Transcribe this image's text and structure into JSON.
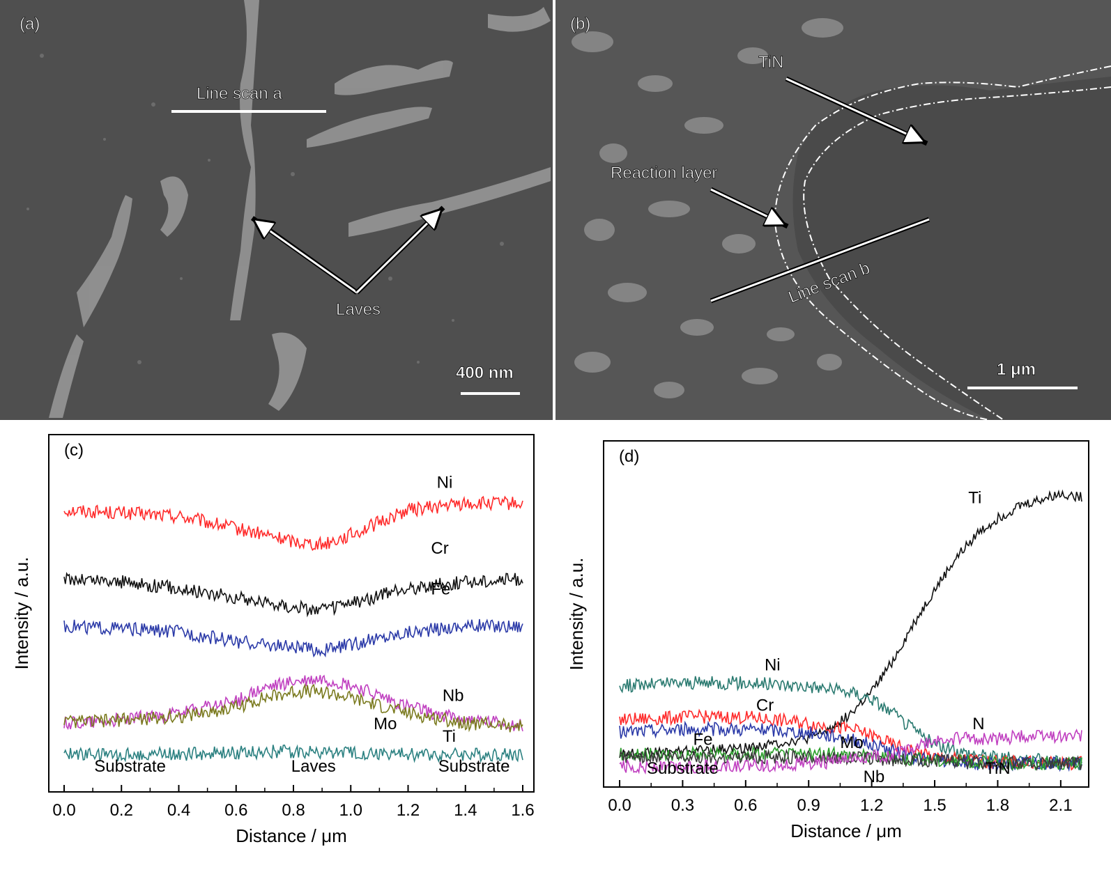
{
  "panels": {
    "a": {
      "tag": "(a)",
      "line_scan_label": "Line scan a",
      "feature_label": "Laves",
      "scale_bar_label": "400 nm"
    },
    "b": {
      "tag": "(b)",
      "tin_label": "TiN",
      "reaction_layer_label": "Reaction layer",
      "line_scan_label": "Line scan b",
      "scale_bar_label": "1 μm"
    }
  },
  "chart_data": [
    {
      "id": "c",
      "tag": "(c)",
      "type": "line",
      "xlabel": "Distance / μm",
      "ylabel": "Intensity / a.u.",
      "xlim": [
        0.0,
        1.6
      ],
      "ylim": [
        0,
        100
      ],
      "x_ticks": [
        "0.0",
        "0.2",
        "0.4",
        "0.6",
        "0.8",
        "1.0",
        "1.2",
        "1.4",
        "1.6"
      ],
      "y_ticks_visible": false,
      "grid": false,
      "region_labels": [
        {
          "text": "Substrate",
          "x": 0.23
        },
        {
          "text": "Laves",
          "x": 0.87
        },
        {
          "text": "Substrate",
          "x": 1.43
        }
      ],
      "series": [
        {
          "name": "Ni",
          "color": "#ff2a2a",
          "label_at": [
            1.3,
            91
          ],
          "x": [
            0.0,
            0.2,
            0.4,
            0.6,
            0.8,
            0.9,
            1.0,
            1.2,
            1.4,
            1.6
          ],
          "y": [
            84,
            83,
            82,
            78,
            74,
            73,
            76,
            84,
            86,
            86
          ]
        },
        {
          "name": "Cr",
          "color": "#111111",
          "label_at": [
            1.28,
            70
          ],
          "x": [
            0.0,
            0.2,
            0.4,
            0.6,
            0.8,
            0.9,
            1.0,
            1.2,
            1.4,
            1.6
          ],
          "y": [
            62,
            61,
            59,
            56,
            53,
            52,
            54,
            59,
            61,
            62
          ]
        },
        {
          "name": "Fe",
          "color": "#2b3aa8",
          "label_at": [
            1.28,
            57
          ],
          "x": [
            0.0,
            0.2,
            0.4,
            0.6,
            0.8,
            0.9,
            1.0,
            1.2,
            1.4,
            1.6
          ],
          "y": [
            47,
            46,
            45,
            42,
            40,
            39,
            41,
            45,
            47,
            47
          ]
        },
        {
          "name": "Nb",
          "color": "#c040c0",
          "label_at": [
            1.32,
            23
          ],
          "x": [
            0.0,
            0.2,
            0.4,
            0.6,
            0.7,
            0.8,
            0.9,
            1.0,
            1.2,
            1.4,
            1.6
          ],
          "y": [
            16,
            17,
            19,
            23,
            27,
            29,
            30,
            28,
            21,
            17,
            15
          ]
        },
        {
          "name": "Mo",
          "color": "#7a7a1e",
          "label_at": [
            1.08,
            14
          ],
          "x": [
            0.0,
            0.2,
            0.4,
            0.6,
            0.7,
            0.8,
            0.9,
            1.0,
            1.2,
            1.4,
            1.6
          ],
          "y": [
            16,
            17,
            18,
            21,
            24,
            26,
            26,
            24,
            19,
            16,
            15
          ]
        },
        {
          "name": "Ti",
          "color": "#2a8080",
          "label_at": [
            1.32,
            10
          ],
          "x": [
            0.0,
            0.4,
            0.8,
            1.2,
            1.6
          ],
          "y": [
            6,
            6,
            7,
            6,
            6
          ]
        }
      ]
    },
    {
      "id": "d",
      "tag": "(d)",
      "type": "line",
      "xlabel": "Distance / μm",
      "ylabel": "Intensity / a.u.",
      "xlim": [
        0.0,
        2.2
      ],
      "ylim": [
        0,
        100
      ],
      "x_ticks": [
        "0.0",
        "0.3",
        "0.6",
        "0.9",
        "1.2",
        "1.5",
        "1.8",
        "2.1"
      ],
      "y_ticks_visible": false,
      "grid": false,
      "region_labels": [
        {
          "text": "Substrate",
          "x": 0.3
        },
        {
          "text": "TiN",
          "x": 1.8
        }
      ],
      "series": [
        {
          "name": "Ti",
          "color": "#111111",
          "label_at": [
            1.66,
            86
          ],
          "x": [
            0.0,
            0.3,
            0.6,
            0.9,
            1.0,
            1.1,
            1.2,
            1.3,
            1.4,
            1.5,
            1.6,
            1.7,
            1.8,
            1.9,
            2.0,
            2.1,
            2.2
          ],
          "y": [
            5,
            6,
            7,
            10,
            13,
            18,
            25,
            35,
            47,
            58,
            68,
            76,
            81,
            85,
            87,
            89,
            88
          ]
        },
        {
          "name": "Ni",
          "color": "#2a7a70",
          "label_at": [
            0.69,
            32
          ],
          "x": [
            0.0,
            0.3,
            0.6,
            0.9,
            1.0,
            1.1,
            1.2,
            1.3,
            1.4,
            1.5,
            1.6,
            1.8,
            2.0,
            2.2
          ],
          "y": [
            27,
            28,
            28,
            27,
            26,
            25,
            23,
            18,
            13,
            8,
            6,
            4,
            3,
            2
          ]
        },
        {
          "name": "Cr",
          "color": "#ff2a2a",
          "label_at": [
            0.65,
            19
          ],
          "x": [
            0.0,
            0.3,
            0.6,
            0.9,
            1.0,
            1.1,
            1.2,
            1.3,
            1.4,
            1.5,
            1.7,
            2.0,
            2.2
          ],
          "y": [
            16,
            17,
            17,
            15,
            14,
            13,
            11,
            8,
            6,
            4,
            3,
            2,
            2
          ]
        },
        {
          "name": "Fe",
          "color": "#2b3aa8",
          "label_at": [
            0.35,
            8
          ],
          "x": [
            0.0,
            0.3,
            0.6,
            0.9,
            1.0,
            1.1,
            1.2,
            1.3,
            1.4,
            1.5,
            1.7,
            2.0,
            2.2
          ],
          "y": [
            12,
            13,
            13,
            12,
            11,
            10,
            8,
            6,
            4,
            3,
            2,
            2,
            2
          ]
        },
        {
          "name": "Mo",
          "color": "#2a9e2a",
          "label_at": [
            1.05,
            7
          ],
          "x": [
            0.0,
            0.3,
            0.6,
            0.9,
            1.1,
            1.3,
            1.5,
            1.8,
            2.2
          ],
          "y": [
            5,
            5,
            5,
            5,
            5,
            4,
            3,
            2,
            2
          ]
        },
        {
          "name": "Nb",
          "color": "#3a3a3a",
          "label_at": [
            1.16,
            -4
          ],
          "x": [
            0.0,
            0.3,
            0.6,
            0.9,
            1.1,
            1.3,
            1.5,
            1.8,
            2.2
          ],
          "y": [
            4,
            4,
            4,
            4,
            4,
            3,
            3,
            2,
            2
          ]
        },
        {
          "name": "N",
          "color": "#c040c0",
          "label_at": [
            1.68,
            13
          ],
          "x": [
            0.0,
            0.3,
            0.6,
            0.9,
            1.1,
            1.3,
            1.4,
            1.5,
            1.6,
            1.8,
            2.0,
            2.2
          ],
          "y": [
            1,
            1,
            1,
            2,
            3,
            5,
            7,
            9,
            10,
            10,
            11,
            11
          ]
        }
      ]
    }
  ]
}
